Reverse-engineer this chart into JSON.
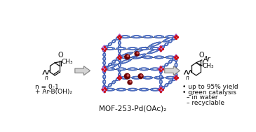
{
  "title": "MOF-253-Pd(OAc)₂",
  "background_color": "#ffffff",
  "fig_width": 3.65,
  "fig_height": 1.89,
  "dpi": 100,
  "bullet_points": [
    "• up to 95% yield",
    "• green catalysis",
    "– in water",
    "– recyclable"
  ],
  "arrow_color": "#d4d4d4",
  "arrow_edge_color": "#808080",
  "title_fontsize": 7.5,
  "label_fontsize": 6.5,
  "bullet_fontsize": 6.5,
  "pink_color": "#c878d8",
  "blue_color": "#2244aa",
  "blue_light": "#6688cc",
  "gray_dark": "#303030",
  "gray_mid": "#686868",
  "red_dot": "#cc1010",
  "dark_red_sphere": "#6b0000",
  "dark_red_highlight": "#cc5555"
}
